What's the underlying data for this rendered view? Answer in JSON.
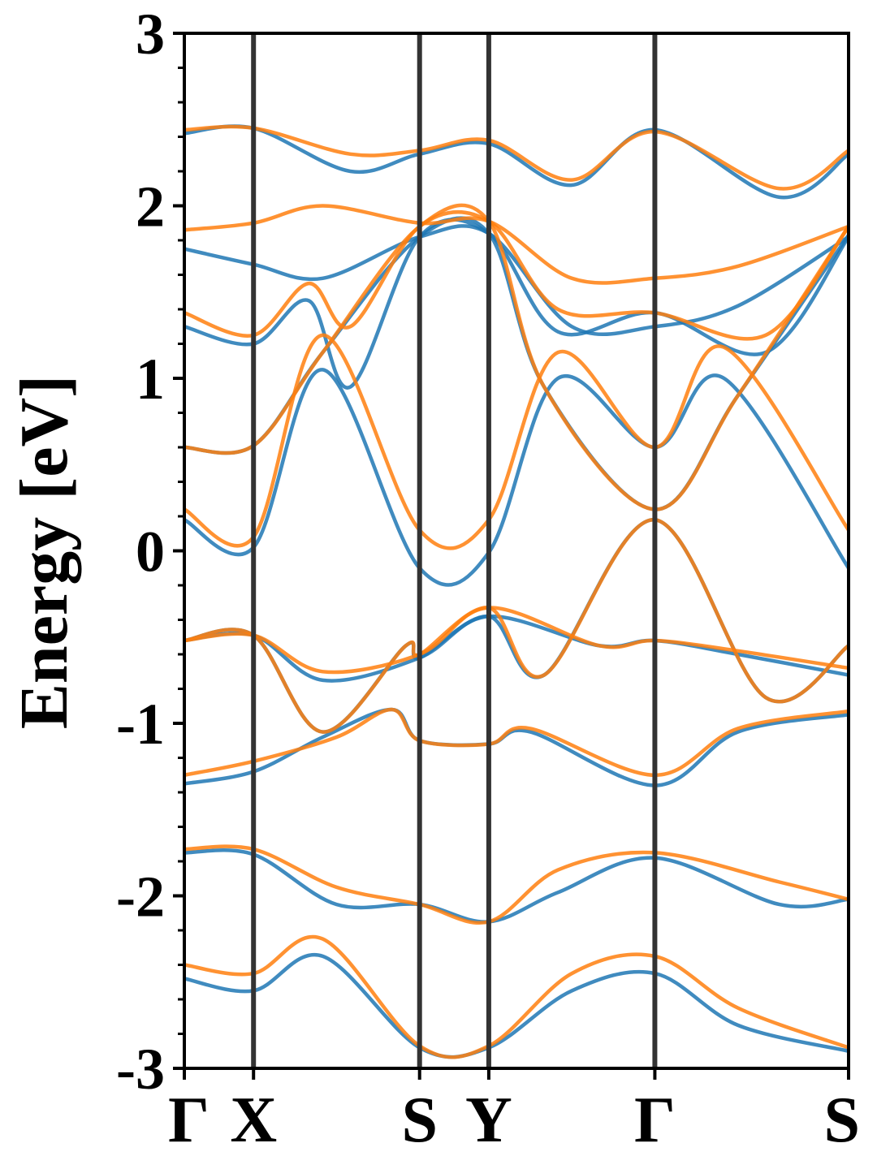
{
  "chart_data": {
    "type": "line",
    "title": "",
    "xlabel": "",
    "ylabel": "Energy [eV]",
    "ylim": [
      -3,
      3
    ],
    "yticks": [
      -3,
      -2,
      -1,
      0,
      1,
      2,
      3
    ],
    "ytick_labels": [
      "-3",
      "-2",
      "-1",
      "0",
      "1",
      "2",
      "3"
    ],
    "kpath_labels": [
      "Γ",
      "X",
      "S",
      "Y",
      "Γ",
      "S"
    ],
    "kpath_positions": [
      0.0,
      0.5,
      1.7,
      2.2,
      3.4,
      4.8
    ],
    "vertical_lines_at": [
      0.5,
      1.7,
      2.2,
      3.4
    ],
    "grid": false,
    "legend": "none",
    "colors": {
      "series_a": "#1f77b4",
      "series_b": "#ff7f0e",
      "vline": "#333333"
    },
    "series": [
      {
        "color": "#1f77b4",
        "bands": [
          {
            "k": [
              0,
              0.5,
              1.0,
              1.7,
              2.2,
              2.7,
              3.4,
              3.9,
              4.8
            ],
            "e": [
              0.18,
              0.02,
              1.05,
              -0.1,
              -0.01,
              1.0,
              0.6,
              1.0,
              -0.1
            ]
          },
          {
            "k": [
              0,
              0.5,
              1.0,
              1.7,
              2.2,
              2.6,
              3.4,
              4.0,
              4.8
            ],
            "e": [
              0.6,
              0.61,
              1.15,
              1.82,
              1.84,
              0.95,
              0.24,
              0.9,
              1.83
            ]
          },
          {
            "k": [
              0,
              0.5,
              0.9,
              1.2,
              1.7,
              2.2,
              2.7,
              3.4,
              4.2,
              4.8
            ],
            "e": [
              1.3,
              1.2,
              1.45,
              0.95,
              1.82,
              1.84,
              1.27,
              1.38,
              1.15,
              1.82
            ]
          },
          {
            "k": [
              0,
              0.5,
              1.0,
              1.7,
              2.2,
              2.8,
              3.4,
              4.0,
              4.8
            ],
            "e": [
              1.75,
              1.66,
              1.58,
              1.82,
              1.84,
              1.3,
              1.3,
              1.42,
              1.82
            ]
          },
          {
            "k": [
              0,
              0.5,
              1.2,
              1.7,
              2.2,
              2.8,
              3.4,
              4.3,
              4.8
            ],
            "e": [
              2.42,
              2.45,
              2.2,
              2.3,
              2.36,
              2.12,
              2.44,
              2.05,
              2.3
            ]
          },
          {
            "k": [
              0,
              0.5,
              1.0,
              1.7,
              2.2,
              3.0,
              3.4,
              4.0,
              4.8
            ],
            "e": [
              -0.52,
              -0.49,
              -0.75,
              -0.62,
              -0.38,
              -0.55,
              -0.52,
              -0.6,
              -0.72
            ]
          },
          {
            "k": [
              0,
              0.5,
              1.0,
              1.6,
              1.7,
              2.2,
              2.6,
              3.4,
              4.2,
              4.8
            ],
            "e": [
              -0.52,
              -0.49,
              -1.05,
              -0.55,
              -0.62,
              -0.38,
              -0.72,
              0.18,
              -0.85,
              -0.55
            ]
          },
          {
            "k": [
              0,
              0.5,
              1.0,
              1.5,
              1.7,
              2.2,
              2.5,
              3.4,
              4.0,
              4.8
            ],
            "e": [
              -1.35,
              -1.28,
              -1.08,
              -0.92,
              -1.1,
              -1.12,
              -1.05,
              -1.36,
              -1.05,
              -0.95
            ]
          },
          {
            "k": [
              0,
              0.5,
              1.1,
              1.7,
              2.2,
              2.7,
              3.4,
              4.3,
              4.8
            ],
            "e": [
              -1.75,
              -1.76,
              -2.05,
              -2.05,
              -2.15,
              -1.98,
              -1.78,
              -2.05,
              -2.02
            ]
          },
          {
            "k": [
              0,
              0.5,
              1.0,
              1.7,
              2.2,
              2.8,
              3.4,
              4.0,
              4.8
            ],
            "e": [
              -2.48,
              -2.55,
              -2.35,
              -2.88,
              -2.88,
              -2.55,
              -2.45,
              -2.75,
              -2.9
            ]
          }
        ]
      },
      {
        "color": "#ff7f0e",
        "bands": [
          {
            "k": [
              0,
              0.5,
              1.0,
              1.7,
              2.2,
              2.7,
              3.4,
              3.9,
              4.8
            ],
            "e": [
              0.24,
              0.08,
              1.25,
              0.12,
              0.18,
              1.15,
              0.6,
              1.18,
              0.12
            ]
          },
          {
            "k": [
              0,
              0.5,
              1.0,
              1.7,
              2.2,
              2.6,
              3.4,
              4.0,
              4.8
            ],
            "e": [
              0.6,
              0.61,
              1.15,
              1.88,
              1.91,
              0.95,
              0.24,
              0.9,
              1.88
            ]
          },
          {
            "k": [
              0,
              0.5,
              0.9,
              1.2,
              1.7,
              2.2,
              2.7,
              3.4,
              4.2,
              4.8
            ],
            "e": [
              1.38,
              1.25,
              1.55,
              1.3,
              1.88,
              1.91,
              1.4,
              1.38,
              1.25,
              1.88
            ]
          },
          {
            "k": [
              0,
              0.5,
              1.0,
              1.7,
              2.2,
              2.8,
              3.4,
              4.0,
              4.8
            ],
            "e": [
              1.86,
              1.9,
              2.0,
              1.9,
              1.91,
              1.58,
              1.58,
              1.65,
              1.88
            ]
          },
          {
            "k": [
              0,
              0.5,
              1.2,
              1.7,
              2.2,
              2.8,
              3.4,
              4.3,
              4.8
            ],
            "e": [
              2.44,
              2.45,
              2.3,
              2.32,
              2.38,
              2.15,
              2.43,
              2.1,
              2.32
            ]
          },
          {
            "k": [
              0,
              0.5,
              1.0,
              1.7,
              2.2,
              3.0,
              3.4,
              4.0,
              4.8
            ],
            "e": [
              -0.52,
              -0.49,
              -0.7,
              -0.6,
              -0.33,
              -0.55,
              -0.52,
              -0.58,
              -0.68
            ]
          },
          {
            "k": [
              0,
              0.5,
              1.0,
              1.6,
              1.7,
              2.2,
              2.6,
              3.4,
              4.2,
              4.8
            ],
            "e": [
              -0.52,
              -0.49,
              -1.05,
              -0.55,
              -0.6,
              -0.33,
              -0.72,
              0.18,
              -0.85,
              -0.55
            ]
          },
          {
            "k": [
              0,
              0.5,
              1.1,
              1.5,
              1.7,
              2.2,
              2.5,
              3.4,
              4.0,
              4.8
            ],
            "e": [
              -1.3,
              -1.22,
              -1.08,
              -0.92,
              -1.1,
              -1.12,
              -1.03,
              -1.3,
              -1.03,
              -0.93
            ]
          },
          {
            "k": [
              0,
              0.5,
              1.1,
              1.7,
              2.2,
              2.7,
              3.4,
              4.3,
              4.8
            ],
            "e": [
              -1.73,
              -1.73,
              -1.95,
              -2.05,
              -2.15,
              -1.85,
              -1.75,
              -1.92,
              -2.02
            ]
          },
          {
            "k": [
              0,
              0.5,
              1.0,
              1.7,
              2.2,
              2.8,
              3.4,
              4.0,
              4.8
            ],
            "e": [
              -2.4,
              -2.45,
              -2.25,
              -2.87,
              -2.87,
              -2.45,
              -2.35,
              -2.65,
              -2.88
            ]
          }
        ]
      }
    ]
  }
}
